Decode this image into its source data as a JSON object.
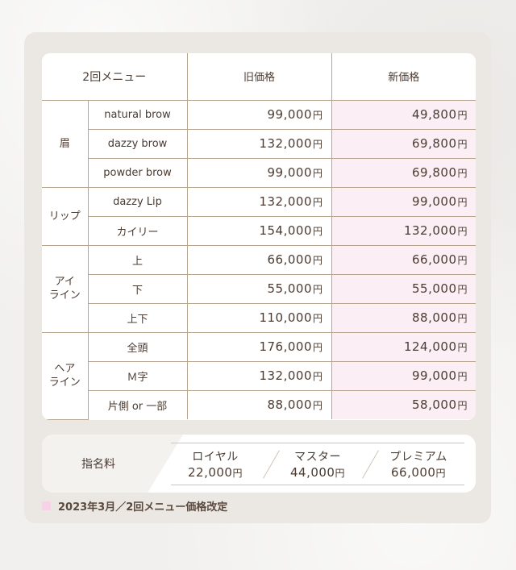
{
  "table": {
    "headers": [
      "2回メニュー",
      "旧価格",
      "新価格"
    ],
    "yen_symbol": "円",
    "groups": [
      {
        "category": "眉",
        "rows": [
          {
            "item": "natural brow",
            "old": "99,000",
            "new": "49,800"
          },
          {
            "item": "dazzy brow",
            "old": "132,000",
            "new": "69,800"
          },
          {
            "item": "powder brow",
            "old": "99,000",
            "new": "69,800"
          }
        ]
      },
      {
        "category": "リップ",
        "rows": [
          {
            "item": "dazzy Lip",
            "old": "132,000",
            "new": "99,000"
          },
          {
            "item": "カイリー",
            "old": "154,000",
            "new": "132,000"
          }
        ]
      },
      {
        "category": "アイ\nライン",
        "rows": [
          {
            "item": "上",
            "old": "66,000",
            "new": "66,000"
          },
          {
            "item": "下",
            "old": "55,000",
            "new": "55,000"
          },
          {
            "item": "上下",
            "old": "110,000",
            "new": "88,000"
          }
        ]
      },
      {
        "category": "ヘア\nライン",
        "rows": [
          {
            "item": "全頭",
            "old": "176,000",
            "new": "124,000"
          },
          {
            "item": "Ｍ字",
            "old": "132,000",
            "new": "99,000"
          },
          {
            "item": "片側 or 一部",
            "old": "88,000",
            "new": "58,000"
          }
        ]
      }
    ]
  },
  "nomination_fee": {
    "label": "指名料",
    "items": [
      {
        "name": "ロイヤル",
        "amount": "22,000"
      },
      {
        "name": "マスター",
        "amount": "44,000"
      },
      {
        "name": "プレミアム",
        "amount": "66,000"
      }
    ]
  },
  "note": "2023年3月／2回メニュー価格改定",
  "colors": {
    "new_price_bg": "#fbeef5",
    "border": "#b7a58f",
    "panel_bg": "#ebe7e2"
  }
}
